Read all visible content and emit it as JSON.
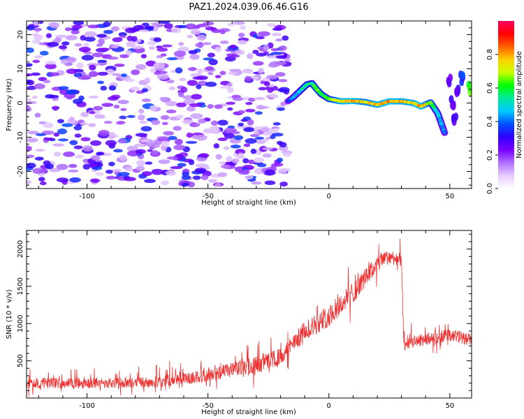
{
  "title": "PAZ1.2024.039.06.46.G16",
  "chart_data": [
    {
      "type": "heatmap",
      "xlabel": "Height of straight line (km)",
      "ylabel": "Frequency (Hz)",
      "xlim": [
        -125,
        59
      ],
      "ylim": [
        -25,
        24
      ],
      "xticks": [
        -100,
        -50,
        0,
        50
      ],
      "yticks": [
        -20,
        -10,
        0,
        10,
        20
      ],
      "colorbar": {
        "label": "Normalized spectral amplitude",
        "range": [
          0.0,
          1.0
        ],
        "ticks": [
          "0.0",
          "0.2",
          "0.4",
          "0.6",
          "0.8"
        ],
        "colormap": [
          "#ffffff",
          "#e6ccff",
          "#b070ff",
          "#7a00ff",
          "#3000ff",
          "#0050ff",
          "#00c8ff",
          "#00e8a0",
          "#00ff00",
          "#c8ff00",
          "#ffd000",
          "#ff6000",
          "#ff0000",
          "#ff0060"
        ]
      },
      "noise_region": {
        "x": [
          -125,
          -17
        ],
        "freq": [
          -24,
          24
        ],
        "amplitude": [
          0.0,
          0.3
        ]
      },
      "ridge": [
        {
          "x": -17,
          "freq": 0.5,
          "amp": 0.35
        },
        {
          "x": -15,
          "freq": 1.5,
          "amp": 0.45
        },
        {
          "x": -12,
          "freq": 3.5,
          "amp": 0.5
        },
        {
          "x": -9,
          "freq": 5.5,
          "amp": 0.6
        },
        {
          "x": -7,
          "freq": 5.8,
          "amp": 0.55
        },
        {
          "x": -5,
          "freq": 4.0,
          "amp": 0.7
        },
        {
          "x": -3,
          "freq": 2.5,
          "amp": 0.6
        },
        {
          "x": 0,
          "freq": 1.2,
          "amp": 0.65
        },
        {
          "x": 5,
          "freq": 0.5,
          "amp": 0.8
        },
        {
          "x": 10,
          "freq": 0.6,
          "amp": 0.85
        },
        {
          "x": 15,
          "freq": 0.3,
          "amp": 0.75
        },
        {
          "x": 20,
          "freq": -0.5,
          "amp": 0.8
        },
        {
          "x": 25,
          "freq": 0.5,
          "amp": 0.85
        },
        {
          "x": 30,
          "freq": 0.5,
          "amp": 0.8
        },
        {
          "x": 35,
          "freq": 0.0,
          "amp": 0.8
        },
        {
          "x": 38,
          "freq": -1.0,
          "amp": 0.85
        },
        {
          "x": 42,
          "freq": 0.2,
          "amp": 0.7
        },
        {
          "x": 45,
          "freq": -3.0,
          "amp": 0.5
        },
        {
          "x": 47,
          "freq": -7.0,
          "amp": 0.45
        },
        {
          "x": 48,
          "freq": -9.0,
          "amp": 0.4
        }
      ],
      "secondary": [
        {
          "x": 50,
          "freq": 7.0,
          "amp": 0.3
        },
        {
          "x": 51,
          "freq": 0.0,
          "amp": 0.3
        },
        {
          "x": 52,
          "freq": -5.0,
          "amp": 0.3
        },
        {
          "x": 53,
          "freq": 4.0,
          "amp": 0.35
        },
        {
          "x": 55,
          "freq": 7.0,
          "amp": 0.4
        },
        {
          "x": 58,
          "freq": 4.5,
          "amp": 0.7
        }
      ]
    },
    {
      "type": "line",
      "xlabel": "Height of straight line (km)",
      "ylabel": "SNR (10 * v/v)",
      "xlim": [
        -125,
        59
      ],
      "ylim": [
        0,
        2250
      ],
      "xticks": [
        -100,
        -50,
        0,
        50
      ],
      "yticks": [
        500,
        1000,
        1500,
        2000
      ],
      "series": [
        {
          "color": "#f03030",
          "envelope": [
            {
              "x": -125,
              "y": 200,
              "noise": 90
            },
            {
              "x": -100,
              "y": 200,
              "noise": 90
            },
            {
              "x": -75,
              "y": 210,
              "noise": 90
            },
            {
              "x": -60,
              "y": 260,
              "noise": 100
            },
            {
              "x": -50,
              "y": 300,
              "noise": 110
            },
            {
              "x": -40,
              "y": 380,
              "noise": 130
            },
            {
              "x": -30,
              "y": 450,
              "noise": 140
            },
            {
              "x": -20,
              "y": 550,
              "noise": 150
            },
            {
              "x": -15,
              "y": 720,
              "noise": 160
            },
            {
              "x": -10,
              "y": 900,
              "noise": 170
            },
            {
              "x": 0,
              "y": 1100,
              "noise": 180
            },
            {
              "x": 10,
              "y": 1420,
              "noise": 180
            },
            {
              "x": 20,
              "y": 1800,
              "noise": 140
            },
            {
              "x": 25,
              "y": 1900,
              "noise": 120
            },
            {
              "x": 30,
              "y": 1850,
              "noise": 120
            },
            {
              "x": 31,
              "y": 700,
              "noise": 100
            },
            {
              "x": 35,
              "y": 760,
              "noise": 100
            },
            {
              "x": 45,
              "y": 820,
              "noise": 110
            },
            {
              "x": 50,
              "y": 850,
              "noise": 110
            },
            {
              "x": 59,
              "y": 780,
              "noise": 100
            }
          ]
        }
      ]
    }
  ]
}
